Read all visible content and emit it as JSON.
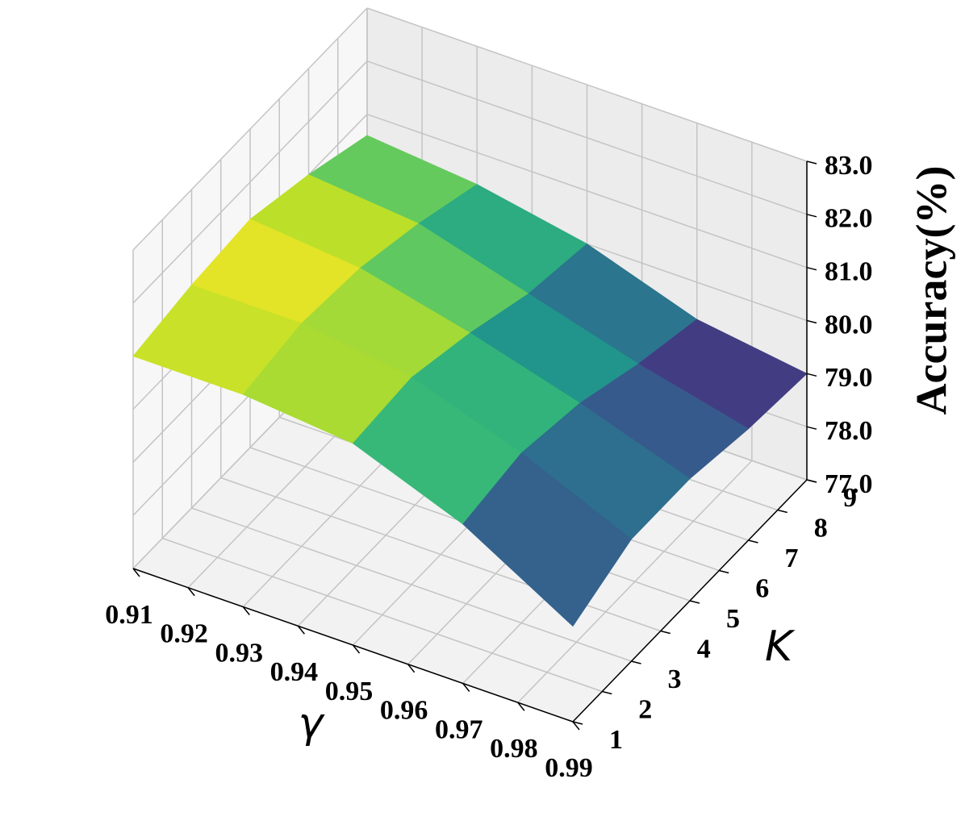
{
  "chart_data": {
    "type": "surface3d",
    "x_label": "γ",
    "y_label": "K",
    "z_label": "Accuracy(%)",
    "x": [
      0.91,
      0.93,
      0.95,
      0.97,
      0.99
    ],
    "y": [
      1,
      3,
      5,
      7,
      9
    ],
    "z": [
      [
        81.0,
        81.2,
        81.3,
        81.0,
        80.6
      ],
      [
        81.0,
        81.2,
        81.1,
        80.8,
        80.4
      ],
      [
        80.8,
        80.9,
        80.6,
        80.2,
        80.0
      ],
      [
        80.0,
        80.2,
        80.0,
        79.6,
        79.3
      ],
      [
        78.8,
        79.3,
        79.3,
        79.1,
        79.0
      ]
    ],
    "colormap": "viridis",
    "xlim": [
      0.91,
      0.99
    ],
    "ylim": [
      1,
      9
    ],
    "zlim": [
      77,
      83
    ],
    "xticks": [
      0.91,
      0.92,
      0.93,
      0.94,
      0.95,
      0.96,
      0.97,
      0.98,
      0.99
    ],
    "yticks": [
      1,
      2,
      3,
      4,
      5,
      6,
      7,
      8,
      9
    ],
    "zticks": [
      {
        "value": 77,
        "label": "77.0"
      },
      {
        "value": 78,
        "label": "78.0"
      },
      {
        "value": 79,
        "label": "79.0"
      },
      {
        "value": 80,
        "label": "80.0"
      },
      {
        "value": 81,
        "label": "81.0"
      },
      {
        "value": 82,
        "label": "82.0"
      },
      {
        "value": 83,
        "label": "83.0"
      }
    ],
    "grid": true
  }
}
